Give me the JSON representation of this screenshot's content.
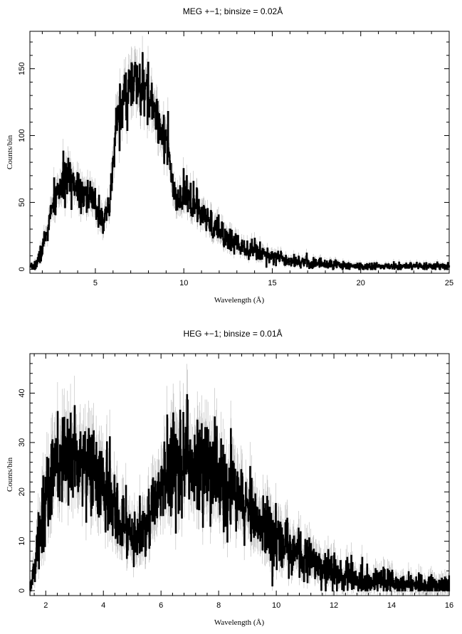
{
  "chart_data": [
    {
      "type": "line",
      "title": "MEG +−1; binsize = 0.02Å",
      "xlabel": "Wavelength (Å)",
      "ylabel": "Counts/bin",
      "xlim": [
        1.3,
        25
      ],
      "ylim": [
        -3,
        178
      ],
      "xticks": [
        5,
        10,
        15,
        20,
        25
      ],
      "yticks": [
        0,
        50,
        100,
        150
      ],
      "profile": [
        [
          1.3,
          1
        ],
        [
          1.6,
          3
        ],
        [
          1.8,
          8
        ],
        [
          2.0,
          16
        ],
        [
          2.3,
          30
        ],
        [
          2.6,
          48
        ],
        [
          3.0,
          62
        ],
        [
          3.3,
          66
        ],
        [
          3.6,
          67
        ],
        [
          3.9,
          64
        ],
        [
          4.2,
          60
        ],
        [
          4.5,
          56
        ],
        [
          4.8,
          51
        ],
        [
          5.1,
          46
        ],
        [
          5.3,
          42
        ],
        [
          5.6,
          36
        ],
        [
          5.8,
          46
        ],
        [
          6.0,
          78
        ],
        [
          6.2,
          114
        ],
        [
          6.5,
          122
        ],
        [
          6.8,
          133
        ],
        [
          7.1,
          140
        ],
        [
          7.3,
          138
        ],
        [
          7.6,
          134
        ],
        [
          7.9,
          131
        ],
        [
          8.2,
          124
        ],
        [
          8.5,
          114
        ],
        [
          8.8,
          104
        ],
        [
          9.1,
          90
        ],
        [
          9.3,
          68
        ],
        [
          9.5,
          50
        ],
        [
          9.8,
          50
        ],
        [
          10.1,
          56
        ],
        [
          10.4,
          52
        ],
        [
          10.8,
          44
        ],
        [
          11.2,
          37
        ],
        [
          11.8,
          30
        ],
        [
          12.5,
          23
        ],
        [
          13.2,
          18
        ],
        [
          14.0,
          14
        ],
        [
          15.0,
          10
        ],
        [
          16.0,
          7
        ],
        [
          17.0,
          5
        ],
        [
          18.0,
          4
        ],
        [
          19.0,
          3
        ],
        [
          20.0,
          2
        ],
        [
          22.0,
          2
        ],
        [
          25.0,
          2
        ]
      ],
      "grid": false
    },
    {
      "type": "line",
      "title": "HEG +−1; binsize = 0.01Å",
      "xlabel": "Wavelength (Å)",
      "ylabel": "Counts/bin",
      "xlim": [
        1.45,
        16
      ],
      "ylim": [
        -1,
        48
      ],
      "xticks": [
        2,
        4,
        6,
        8,
        10,
        12,
        14,
        16
      ],
      "yticks": [
        0,
        10,
        20,
        30,
        40
      ],
      "profile": [
        [
          1.45,
          1
        ],
        [
          1.6,
          4
        ],
        [
          1.75,
          10
        ],
        [
          1.9,
          17
        ],
        [
          2.1,
          21
        ],
        [
          2.4,
          25
        ],
        [
          2.7,
          27
        ],
        [
          3.0,
          28
        ],
        [
          3.3,
          27
        ],
        [
          3.6,
          25
        ],
        [
          3.9,
          22
        ],
        [
          4.2,
          18
        ],
        [
          4.5,
          15
        ],
        [
          4.8,
          12
        ],
        [
          5.1,
          11
        ],
        [
          5.4,
          12
        ],
        [
          5.7,
          16
        ],
        [
          6.0,
          21
        ],
        [
          6.3,
          25
        ],
        [
          6.6,
          26
        ],
        [
          6.9,
          27
        ],
        [
          7.2,
          27
        ],
        [
          7.5,
          25
        ],
        [
          7.8,
          24
        ],
        [
          8.1,
          23
        ],
        [
          8.4,
          21
        ],
        [
          8.7,
          19
        ],
        [
          9.0,
          16
        ],
        [
          9.4,
          14
        ],
        [
          9.8,
          12
        ],
        [
          10.2,
          10
        ],
        [
          10.6,
          8
        ],
        [
          11.0,
          7
        ],
        [
          11.5,
          5
        ],
        [
          12.0,
          4
        ],
        [
          12.5,
          3
        ],
        [
          13.0,
          2
        ],
        [
          14.0,
          1.5
        ],
        [
          15.0,
          1.2
        ],
        [
          16.0,
          1
        ]
      ],
      "grid": false
    }
  ]
}
